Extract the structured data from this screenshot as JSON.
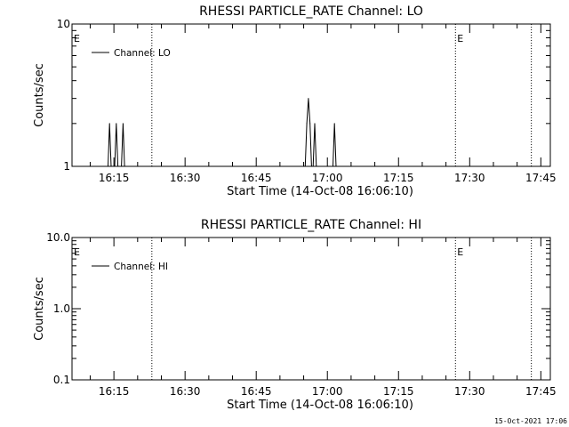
{
  "chart_data": [
    {
      "type": "line",
      "title": "RHESSI PARTICLE_RATE Channel: LO",
      "xlabel": "Start Time (14-Oct-08 16:06:10)",
      "ylabel": "Counts/sec",
      "y_scale": "log",
      "ylim": [
        1,
        10
      ],
      "y_ticks": [
        {
          "value": 1,
          "label": "1"
        },
        {
          "value": 10,
          "label": "10"
        }
      ],
      "xlim": [
        "16:06:10",
        "17:47:00"
      ],
      "x_ticks": [
        "16:15",
        "16:30",
        "16:45",
        "17:00",
        "17:15",
        "17:30",
        "17:45"
      ],
      "legend_position": "top-left",
      "series": [
        {
          "name": "Channel: LO",
          "points": [
            {
              "x": "16:13:45",
              "y": 1
            },
            {
              "x": "16:14:05",
              "y": 2
            },
            {
              "x": "16:14:25",
              "y": 1
            },
            {
              "x": "16:15:10",
              "y": 1
            },
            {
              "x": "16:15:30",
              "y": 2
            },
            {
              "x": "16:15:50",
              "y": 1
            },
            {
              "x": "16:16:35",
              "y": 1
            },
            {
              "x": "16:16:55",
              "y": 2
            },
            {
              "x": "16:17:15",
              "y": 1
            },
            {
              "x": "16:55:20",
              "y": 1
            },
            {
              "x": "16:55:40",
              "y": 2
            },
            {
              "x": "16:56:00",
              "y": 3
            },
            {
              "x": "16:56:20",
              "y": 2
            },
            {
              "x": "16:56:40",
              "y": 1
            },
            {
              "x": "16:57:00",
              "y": 1
            },
            {
              "x": "16:57:20",
              "y": 2
            },
            {
              "x": "16:57:40",
              "y": 1
            },
            {
              "x": "17:01:10",
              "y": 1
            },
            {
              "x": "17:01:30",
              "y": 2
            },
            {
              "x": "17:01:50",
              "y": 1
            }
          ]
        }
      ],
      "vlines": [
        {
          "x": "16:23:00",
          "label": ""
        },
        {
          "x": "17:27:00",
          "label": "E"
        },
        {
          "x": "17:43:00",
          "label": ""
        }
      ],
      "start_marker": "E"
    },
    {
      "type": "line",
      "title": "RHESSI PARTICLE_RATE Channel: HI",
      "xlabel": "Start Time (14-Oct-08 16:06:10)",
      "ylabel": "Counts/sec",
      "y_scale": "log",
      "ylim": [
        0.1,
        10
      ],
      "y_ticks": [
        {
          "value": 0.1,
          "label": "0.1"
        },
        {
          "value": 1,
          "label": "1.0"
        },
        {
          "value": 10,
          "label": "10.0"
        }
      ],
      "xlim": [
        "16:06:10",
        "17:47:00"
      ],
      "x_ticks": [
        "16:15",
        "16:30",
        "16:45",
        "17:00",
        "17:15",
        "17:30",
        "17:45"
      ],
      "legend_position": "top-left",
      "series": [
        {
          "name": "Channel: HI",
          "points": []
        }
      ],
      "vlines": [
        {
          "x": "16:23:00",
          "label": ""
        },
        {
          "x": "17:27:00",
          "label": "E"
        },
        {
          "x": "17:43:00",
          "label": ""
        }
      ],
      "start_marker": "E"
    }
  ],
  "footer": {
    "timestamp": "15-Oct-2021 17:06"
  },
  "colors": {
    "background": "#ffffff",
    "foreground": "#000000"
  }
}
